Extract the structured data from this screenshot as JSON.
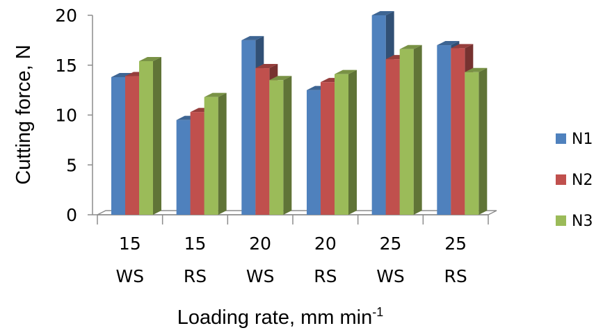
{
  "chart_data": {
    "type": "bar",
    "categories": [
      [
        "15",
        "WS"
      ],
      [
        "15",
        "RS"
      ],
      [
        "20",
        "WS"
      ],
      [
        "20",
        "RS"
      ],
      [
        "25",
        "WS"
      ],
      [
        "25",
        "RS"
      ]
    ],
    "series": [
      {
        "name": "N1",
        "values": [
          13.8,
          9.5,
          17.5,
          12.5,
          20.0,
          17.0
        ],
        "color": "#4F81BD"
      },
      {
        "name": "N2",
        "values": [
          13.9,
          10.3,
          14.7,
          13.3,
          15.6,
          16.7
        ],
        "color": "#C0504D"
      },
      {
        "name": "N3",
        "values": [
          15.4,
          11.8,
          13.5,
          14.1,
          16.6,
          14.3
        ],
        "color": "#9BBB59"
      }
    ],
    "title": "",
    "xlabel": "Loading rate, mm min",
    "xlabel_superscript": "-1",
    "ylabel": "Cutting force, N",
    "ylim": [
      0,
      20
    ],
    "yticks": [
      "0",
      "5",
      "10",
      "15",
      "20"
    ],
    "grid": false,
    "legend_position": "right"
  }
}
